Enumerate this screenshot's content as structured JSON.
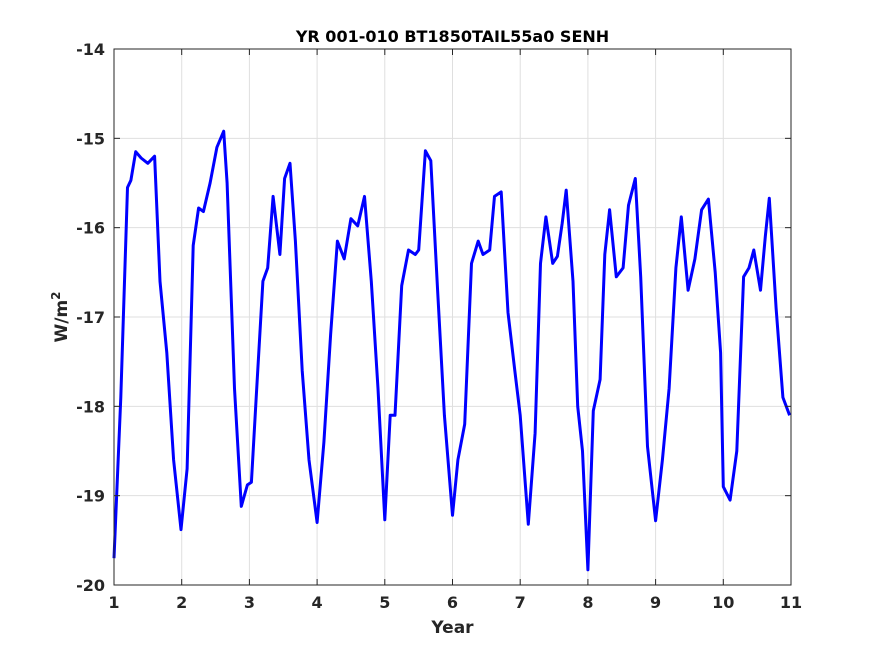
{
  "chart_data": {
    "type": "line",
    "title": "YR 001-010 BT1850TAIL55a0 SENH",
    "xlabel": "Year",
    "ylabel_base": "W/m",
    "ylabel_sup": "2",
    "xlim": [
      1,
      11
    ],
    "ylim": [
      -20,
      -14
    ],
    "xticks": [
      1,
      2,
      3,
      4,
      5,
      6,
      7,
      8,
      9,
      10,
      11
    ],
    "yticks": [
      -20,
      -19,
      -18,
      -17,
      -16,
      -15,
      -14
    ],
    "grid": true,
    "line_color": "#0000ff",
    "series": [
      {
        "x": [
          1.0,
          1.1,
          1.2,
          1.25,
          1.32,
          1.4,
          1.5,
          1.6,
          1.68,
          1.78,
          1.88,
          1.99,
          2.08,
          2.17,
          2.25,
          2.32,
          2.42,
          2.52,
          2.62,
          2.67,
          2.78,
          2.88,
          2.97,
          3.03,
          3.1,
          3.2,
          3.27,
          3.35,
          3.45,
          3.52,
          3.6,
          3.68,
          3.78,
          3.88,
          4.0,
          4.1,
          4.2,
          4.3,
          4.4,
          4.5,
          4.6,
          4.7,
          4.8,
          4.9,
          5.0,
          5.08,
          5.15,
          5.25,
          5.35,
          5.45,
          5.5,
          5.6,
          5.68,
          5.78,
          5.88,
          6.0,
          6.08,
          6.18,
          6.28,
          6.38,
          6.45,
          6.55,
          6.62,
          6.72,
          6.82,
          6.92,
          7.0,
          7.12,
          7.22,
          7.3,
          7.38,
          7.48,
          7.55,
          7.62,
          7.68,
          7.78,
          7.85,
          7.92,
          8.0,
          8.08,
          8.18,
          8.25,
          8.32,
          8.42,
          8.52,
          8.6,
          8.7,
          8.78,
          8.88,
          9.0,
          9.1,
          9.2,
          9.3,
          9.38,
          9.48,
          9.58,
          9.68,
          9.78,
          9.88,
          9.96,
          10.0,
          10.1,
          10.2,
          10.3,
          10.38,
          10.45,
          10.55,
          10.62,
          10.68,
          10.78,
          10.88,
          10.98
        ],
        "y": [
          -19.7,
          -17.9,
          -15.55,
          -15.47,
          -15.15,
          -15.22,
          -15.28,
          -15.2,
          -16.6,
          -17.4,
          -18.6,
          -19.38,
          -18.7,
          -16.2,
          -15.78,
          -15.82,
          -15.5,
          -15.1,
          -14.92,
          -15.5,
          -17.8,
          -19.12,
          -18.88,
          -18.85,
          -17.9,
          -16.6,
          -16.45,
          -15.65,
          -16.3,
          -15.45,
          -15.28,
          -16.15,
          -17.6,
          -18.6,
          -19.3,
          -18.4,
          -17.2,
          -16.15,
          -16.35,
          -15.9,
          -15.98,
          -15.65,
          -16.6,
          -17.8,
          -19.27,
          -18.1,
          -18.1,
          -16.65,
          -16.25,
          -16.3,
          -16.25,
          -15.14,
          -15.25,
          -16.7,
          -18.1,
          -19.22,
          -18.6,
          -18.2,
          -16.4,
          -16.15,
          -16.3,
          -16.25,
          -15.65,
          -15.6,
          -16.95,
          -17.6,
          -18.1,
          -19.32,
          -18.3,
          -16.4,
          -15.88,
          -16.4,
          -16.32,
          -15.95,
          -15.58,
          -16.6,
          -18.0,
          -18.5,
          -19.83,
          -18.05,
          -17.7,
          -16.3,
          -15.8,
          -16.55,
          -16.45,
          -15.75,
          -15.45,
          -16.55,
          -18.45,
          -19.28,
          -18.6,
          -17.8,
          -16.45,
          -15.88,
          -16.7,
          -16.35,
          -15.8,
          -15.68,
          -16.5,
          -17.4,
          -18.9,
          -19.05,
          -18.5,
          -16.55,
          -16.45,
          -16.25,
          -16.7,
          -16.1,
          -15.67,
          -16.9,
          -17.9,
          -18.1
        ]
      }
    ]
  }
}
